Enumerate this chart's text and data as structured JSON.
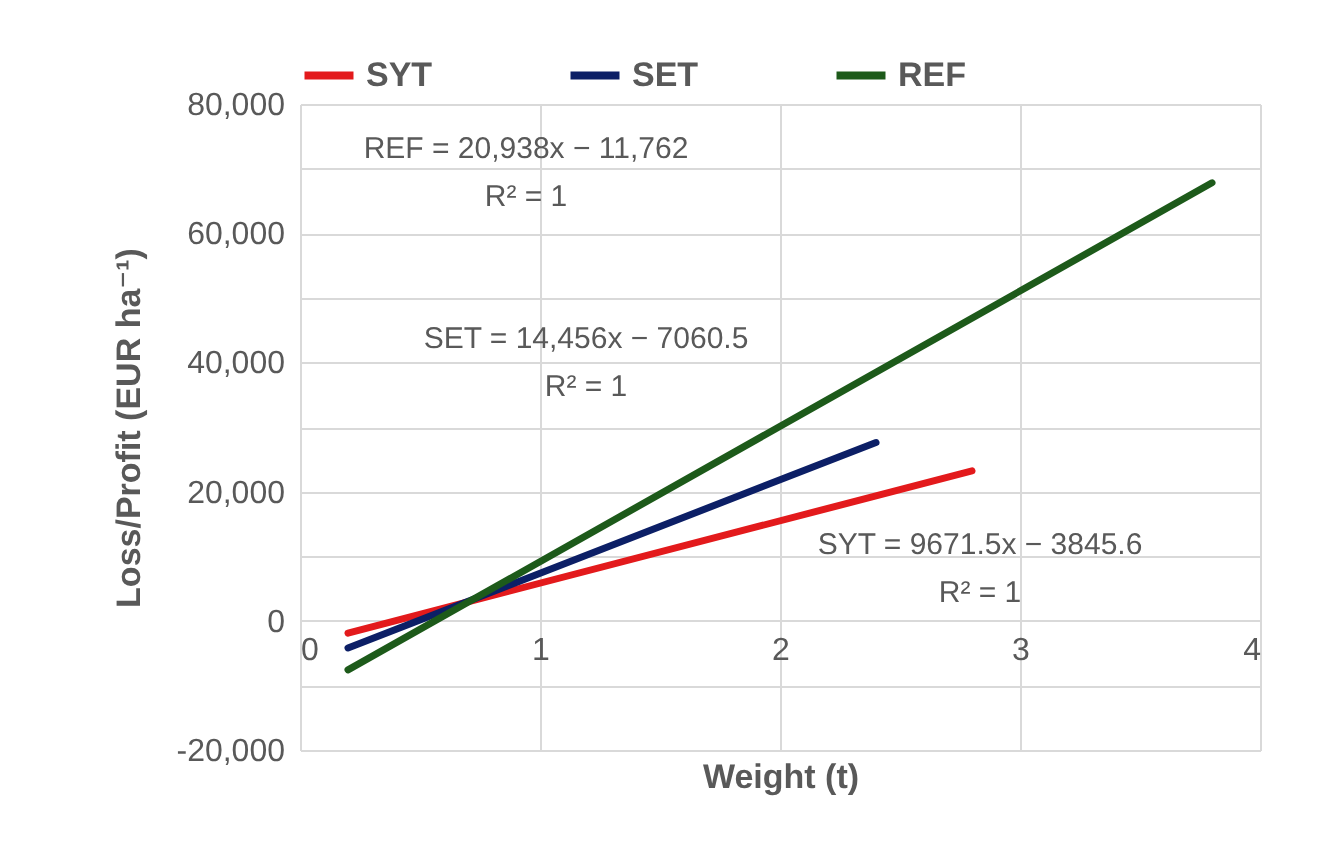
{
  "chart_data": {
    "type": "line",
    "xlabel": "Weight (t)",
    "ylabel": "Loss/Profit (EUR ha⁻¹)",
    "series": [
      {
        "name": "SYT",
        "color": "#e31a1c",
        "x": [
          0.2,
          2.8
        ],
        "values": [
          -1900,
          23200
        ]
      },
      {
        "name": "SET",
        "color": "#0c1f66",
        "x": [
          0.2,
          2.4
        ],
        "values": [
          -4200,
          27600
        ]
      },
      {
        "name": "REF",
        "color": "#1d5a1a",
        "x": [
          0.2,
          3.8
        ],
        "values": [
          -7600,
          67800
        ]
      }
    ],
    "xlim": [
      0,
      4
    ],
    "xticks": [
      0,
      1,
      2,
      3,
      4
    ],
    "ylim": [
      -20000,
      80000
    ],
    "yticks": [
      {
        "value": -20000,
        "label": "-20,000"
      },
      {
        "value": -10000,
        "label": null
      },
      0,
      {
        "value": 10000,
        "label": null
      },
      {
        "value": 20000,
        "label": "20,000"
      },
      {
        "value": 30000,
        "label": null
      },
      {
        "value": 40000,
        "label": "40,000"
      },
      {
        "value": 50000,
        "label": null
      },
      {
        "value": 60000,
        "label": "60,000"
      },
      {
        "value": 70000,
        "label": null
      },
      {
        "value": 80000,
        "label": "80,000"
      }
    ],
    "annotations": [
      "REF = 20,938x − 11,762",
      "R² = 1",
      "SET = 14,456x − 7060.5",
      "R² = 1",
      "SYT = 9671.5x − 3845.6",
      "R² = 1"
    ],
    "grid": true,
    "legend": "top"
  }
}
